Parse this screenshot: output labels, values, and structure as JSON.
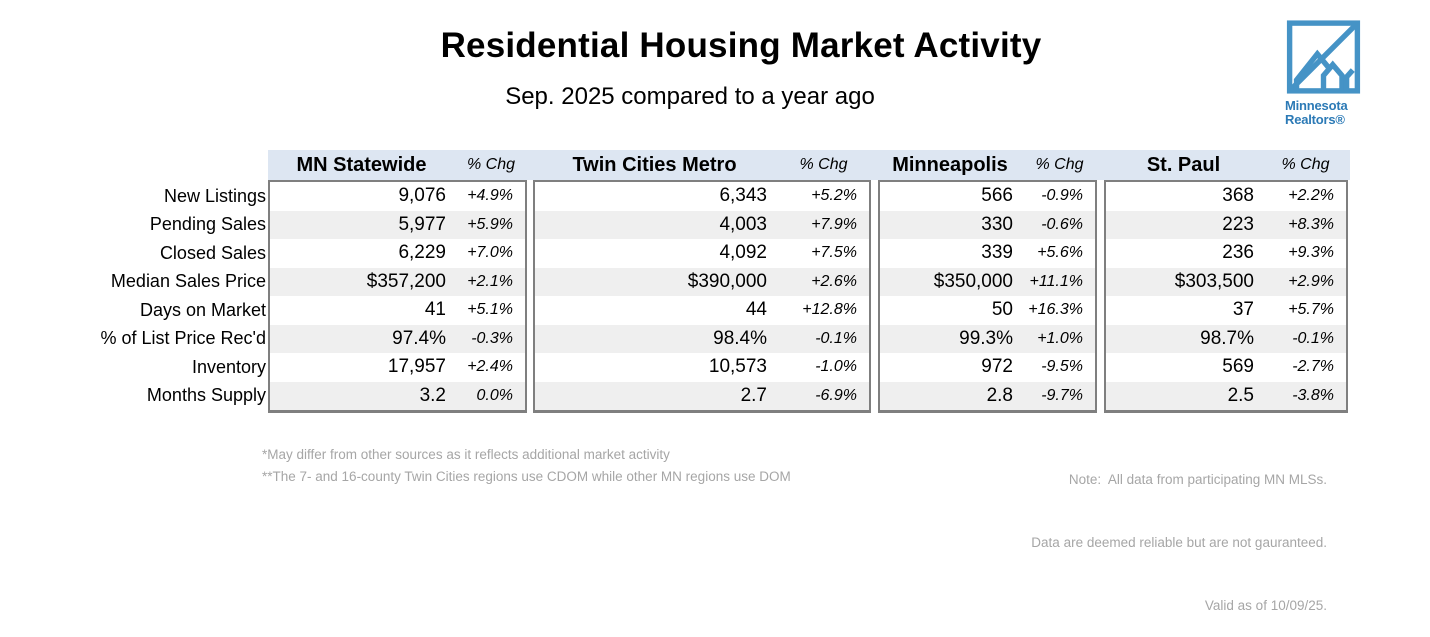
{
  "header": {
    "title": "Residential Housing Market Activity",
    "subtitle": "Sep. 2025 compared to a year ago"
  },
  "logo": {
    "line1": "Minnesota",
    "line2": "Realtors®"
  },
  "chart_data": {
    "type": "table",
    "title": "Residential Housing Market Activity",
    "subtitle": "Sep. 2025 compared to a year ago",
    "region_columns": [
      "MN Statewide",
      "Twin Cities Metro",
      "Minneapolis",
      "St. Paul"
    ],
    "chg_column_label": "% Chg",
    "metrics": [
      "New Listings",
      "Pending Sales",
      "Closed Sales",
      "Median Sales Price",
      "Days on Market",
      "% of List Price Rec'd",
      "Inventory",
      "Months Supply"
    ],
    "values": [
      [
        "9,076",
        "6,343",
        "566",
        "368"
      ],
      [
        "5,977",
        "4,003",
        "330",
        "223"
      ],
      [
        "6,229",
        "4,092",
        "339",
        "236"
      ],
      [
        "$357,200",
        "$390,000",
        "$350,000",
        "$303,500"
      ],
      [
        "41",
        "44",
        "50",
        "37"
      ],
      [
        "97.4%",
        "98.4%",
        "99.3%",
        "98.7%"
      ],
      [
        "17,957",
        "10,573",
        "972",
        "569"
      ],
      [
        "3.2",
        "2.7",
        "2.8",
        "2.5"
      ]
    ],
    "changes": [
      [
        "+4.9%",
        "+5.2%",
        "-0.9%",
        "+2.2%"
      ],
      [
        "+5.9%",
        "+7.9%",
        "-0.6%",
        "+8.3%"
      ],
      [
        "+7.0%",
        "+7.5%",
        "+5.6%",
        "+9.3%"
      ],
      [
        "+2.1%",
        "+2.6%",
        "+11.1%",
        "+2.9%"
      ],
      [
        "+5.1%",
        "+12.8%",
        "+16.3%",
        "+5.7%"
      ],
      [
        "-0.3%",
        "-0.1%",
        "+1.0%",
        "-0.1%"
      ],
      [
        "+2.4%",
        "-1.0%",
        "-9.5%",
        "-2.7%"
      ],
      [
        "0.0%",
        "-6.9%",
        "-9.7%",
        "-3.8%"
      ]
    ]
  },
  "footnotes": {
    "left": [
      "*May differ from other sources as it reflects additional market activity",
      "**The 7- and 16-county Twin Cities regions use CDOM while other MN regions use DOM"
    ],
    "right": [
      "Note:  All data from participating MN MLSs.",
      "Data are deemed reliable but are not gauranteed.",
      "Valid as of 10/09/25."
    ]
  },
  "colors": {
    "header_band": "#dde6f2",
    "alt_row": "#efefef",
    "table_border": "#7f7f7f",
    "logo_blue": "#4593c6",
    "logo_text_blue": "#2c7ab6",
    "footnote_gray": "#a6a6a6"
  }
}
